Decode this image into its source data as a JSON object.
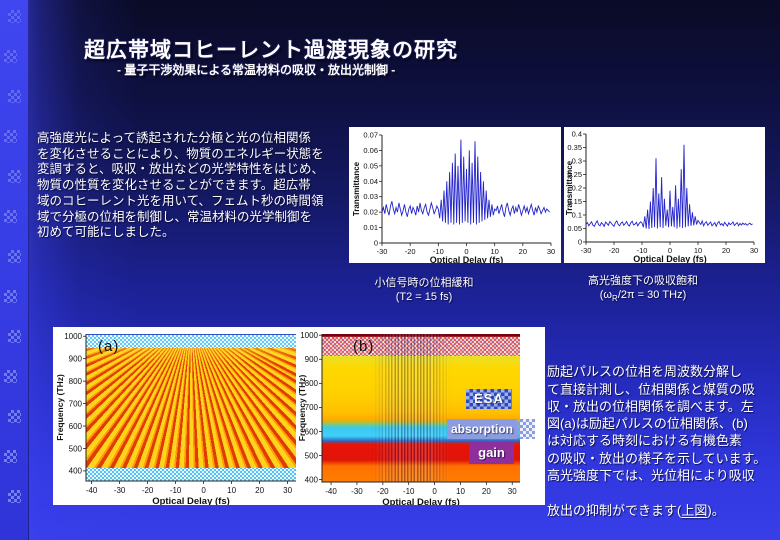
{
  "slide": {
    "title": "超広帯域コヒーレント過渡現象の研究",
    "subtitle": "- 量子干渉効果による常温材料の吸収・放出光制御 -",
    "left_paragraph_lines": [
      "高強度光によって誘起された分極と光の位相関係",
      "を変化させることにより、物質のエネルギー状態を",
      "変調すると、吸収・放出などの光学特性をはじめ、",
      "物質の性質を変化させることができます。超広帯",
      "域のコヒーレント光を用いて、フェムト秒の時間領",
      "域で分極の位相を制御し、常温材料の光学制御を",
      "初めて可能にしました。"
    ],
    "right_paragraph_lines": [
      "励起パルスの位相を周波数分解し",
      "て直接計測し、位相関係と媒質の吸",
      "収・放出の位相関係を調べます。左",
      "図(a)は励起パルスの位相関係、(b)",
      "は対応する時刻における有機色素",
      "の吸収・放出の様子を示しています。",
      "高光強度下では、光位相により吸収"
    ],
    "right_paragraph_last": {
      "pre": "放出の抑制ができます(",
      "underlined": "上図",
      "post": ")。"
    },
    "captions": {
      "c1_line1": "小信号時の位相緩和",
      "c1_line2": "(T2 = 15 fs)",
      "c2_line1": "高光強度下の吸収飽和",
      "c2_pre": "(ω",
      "c2_sub": "R",
      "c2_post": "/2π = 30 THz)"
    },
    "colors": {
      "background_top": "#0a0b26",
      "background_bottom": "#383ee8",
      "accent_bar": "#3a40ee",
      "text": "#ffffff",
      "plot_line": "#2323cc",
      "esa_box": "#2f49bb",
      "absorption_box": "#8c9ce0",
      "gain_box": "#8e2f9c"
    }
  },
  "chart_data": [
    {
      "id": "small_signal_phase_relaxation",
      "type": "line",
      "caption": "小信号時の位相緩和 (T2 = 15 fs)",
      "xlabel": "Optical Delay (fs)",
      "ylabel": "Transmittance",
      "xlim": [
        -30,
        30
      ],
      "ylim": [
        0,
        0.07
      ],
      "xticks": [
        -30,
        -20,
        -10,
        0,
        10,
        20,
        30
      ],
      "ytick_labels": [
        "0",
        "0.01",
        "0.02",
        "0.03",
        "0.04",
        "0.05",
        "0.06",
        "0.07"
      ],
      "x_start": -30,
      "x_step": 0.5,
      "values": [
        0.02,
        0.023,
        0.019,
        0.025,
        0.021,
        0.018,
        0.024,
        0.027,
        0.022,
        0.019,
        0.023,
        0.02,
        0.026,
        0.022,
        0.018,
        0.021,
        0.025,
        0.02,
        0.017,
        0.022,
        0.024,
        0.019,
        0.023,
        0.021,
        0.018,
        0.024,
        0.02,
        0.026,
        0.021,
        0.019,
        0.023,
        0.025,
        0.02,
        0.018,
        0.022,
        0.026,
        0.023,
        0.019,
        0.021,
        0.024,
        0.022,
        0.016,
        0.028,
        0.014,
        0.034,
        0.013,
        0.04,
        0.012,
        0.046,
        0.013,
        0.052,
        0.012,
        0.058,
        0.013,
        0.05,
        0.012,
        0.067,
        0.013,
        0.056,
        0.014,
        0.048,
        0.013,
        0.06,
        0.012,
        0.052,
        0.013,
        0.066,
        0.012,
        0.056,
        0.013,
        0.046,
        0.014,
        0.04,
        0.015,
        0.034,
        0.016,
        0.028,
        0.017,
        0.025,
        0.018,
        0.022,
        0.021,
        0.024,
        0.019,
        0.022,
        0.025,
        0.02,
        0.017,
        0.023,
        0.026,
        0.021,
        0.018,
        0.022,
        0.024,
        0.019,
        0.023,
        0.02,
        0.025,
        0.022,
        0.018,
        0.021,
        0.024,
        0.02,
        0.023,
        0.019,
        0.022,
        0.025,
        0.021,
        0.018,
        0.023,
        0.02,
        0.024,
        0.022,
        0.019,
        0.021,
        0.023,
        0.02,
        0.022,
        0.021,
        0.02
      ]
    },
    {
      "id": "absorption_saturation_high_intensity",
      "type": "line",
      "caption": "高光強度下の吸収飽和 (ωR/2π = 30 THz)",
      "xlabel": "Optical Delay (fs)",
      "ylabel": "Transmittance",
      "xlim": [
        -30,
        30
      ],
      "ylim": [
        0,
        0.4
      ],
      "xticks": [
        -30,
        -20,
        -10,
        0,
        10,
        20,
        30
      ],
      "ytick_labels": [
        "0",
        "0.05",
        "0.1",
        "0.15",
        "0.2",
        "0.25",
        "0.3",
        "0.35",
        "0.4"
      ],
      "x_start": -30,
      "x_step": 0.5,
      "values": [
        0.065,
        0.072,
        0.06,
        0.068,
        0.075,
        0.062,
        0.058,
        0.07,
        0.078,
        0.064,
        0.06,
        0.072,
        0.066,
        0.058,
        0.074,
        0.068,
        0.062,
        0.076,
        0.07,
        0.063,
        0.058,
        0.072,
        0.078,
        0.065,
        0.06,
        0.07,
        0.074,
        0.062,
        0.068,
        0.076,
        0.064,
        0.059,
        0.071,
        0.077,
        0.063,
        0.066,
        0.073,
        0.06,
        0.069,
        0.075,
        0.07,
        0.055,
        0.095,
        0.05,
        0.12,
        0.048,
        0.15,
        0.052,
        0.2,
        0.055,
        0.31,
        0.05,
        0.18,
        0.055,
        0.24,
        0.052,
        0.16,
        0.06,
        0.12,
        0.055,
        0.19,
        0.058,
        0.13,
        0.055,
        0.21,
        0.05,
        0.16,
        0.055,
        0.27,
        0.052,
        0.36,
        0.055,
        0.2,
        0.058,
        0.14,
        0.06,
        0.11,
        0.062,
        0.095,
        0.065,
        0.08,
        0.072,
        0.065,
        0.078,
        0.06,
        0.07,
        0.075,
        0.062,
        0.068,
        0.074,
        0.06,
        0.066,
        0.072,
        0.058,
        0.07,
        0.076,
        0.063,
        0.068,
        0.06,
        0.073,
        0.066,
        0.059,
        0.071,
        0.064,
        0.068,
        0.074,
        0.061,
        0.067,
        0.072,
        0.06,
        0.069,
        0.063,
        0.07,
        0.065,
        0.068,
        0.062,
        0.066,
        0.07,
        0.064,
        0.067
      ]
    },
    {
      "id": "spectrogram_excitation_phase",
      "type": "heatmap",
      "panel_label": "(a)",
      "xlabel": "Optical Delay (fs)",
      "ylabel": "Frequency (THz)",
      "xlim": [
        -42,
        33
      ],
      "ylim": [
        355,
        1010
      ],
      "xticks": [
        -40,
        -30,
        -20,
        -10,
        0,
        10,
        20,
        30
      ],
      "yticks": [
        1000,
        900,
        800,
        700,
        600,
        500,
        400
      ],
      "description": "Fan of red-orange interference fringes converging toward top center on yellow background; cyan noise bands at top (~960-1000 THz) and bottom (~360-390 THz)"
    },
    {
      "id": "spectrogram_dye_absorption_emission",
      "type": "heatmap",
      "panel_label": "(b)",
      "xlabel": "Optical Delay (fs)",
      "ylabel": "Frequency (THz)",
      "xlim": [
        -43.5,
        33
      ],
      "ylim": [
        390,
        1005
      ],
      "xticks": [
        -40,
        -30,
        -20,
        -10,
        0,
        10,
        20,
        30
      ],
      "yticks": [
        1000,
        900,
        800,
        700,
        600,
        500,
        400
      ],
      "region_labels": [
        {
          "text": "ESA",
          "freq": 660
        },
        {
          "text": "absorption",
          "freq": 610
        },
        {
          "text": "gain",
          "freq": 540
        }
      ],
      "bands": [
        {
          "freq_range": [
            950,
            1000
          ],
          "color": "speckled red/white noise"
        },
        {
          "freq_range": [
            700,
            950
          ],
          "color": "yellow"
        },
        {
          "freq_range": [
            640,
            700
          ],
          "color": "orange-yellow"
        },
        {
          "freq_range": [
            590,
            640
          ],
          "color": "cyan (absorption)"
        },
        {
          "freq_range": [
            480,
            590
          ],
          "color": "red (gain)"
        },
        {
          "freq_range": [
            390,
            480
          ],
          "color": "orange"
        }
      ],
      "description": "Horizontal spectral bands with vertical interference stripes near zero delay"
    }
  ]
}
